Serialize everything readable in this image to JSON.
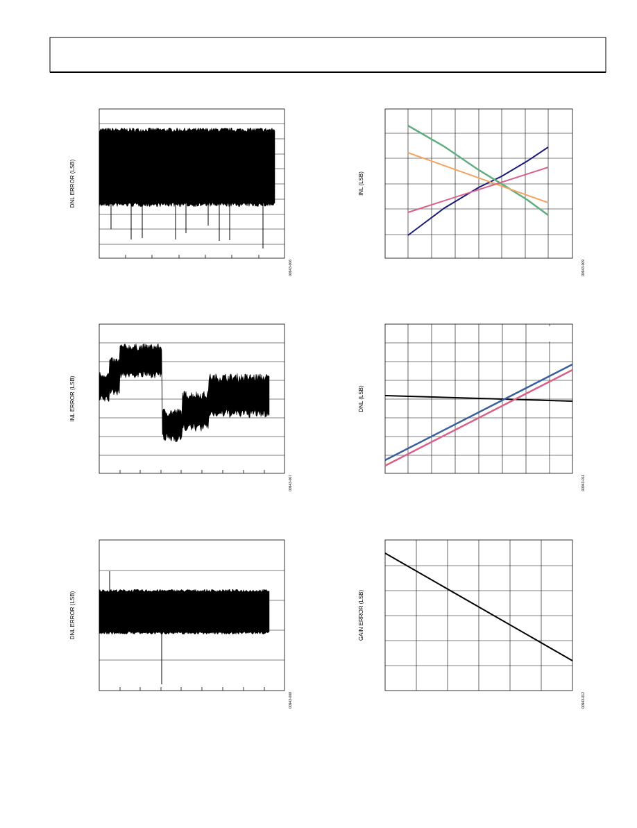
{
  "figures": [
    {
      "y_label": "DNL ERROR (LSB)",
      "code": "00943-006"
    },
    {
      "y_label": "INL (LSB)",
      "code": "00943-009"
    },
    {
      "y_label": "INL ERROR (LSB)",
      "code": "00943-007"
    },
    {
      "y_label": "DNL (LSB)",
      "code": "00943-011"
    },
    {
      "y_label": "DNL ERROR (LSB)",
      "code": "00943-008"
    },
    {
      "y_label": "GAIN ERROR (LSB)",
      "code": "00943-012"
    }
  ]
}
